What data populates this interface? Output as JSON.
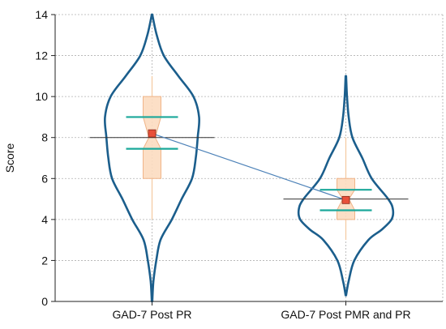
{
  "chart_data": {
    "type": "violin",
    "title": "",
    "ylabel": "Score",
    "xlabel": "",
    "ylim": [
      0,
      14
    ],
    "yticks": [
      0,
      2,
      4,
      6,
      8,
      10,
      12,
      14
    ],
    "ytick_labels": [
      "0",
      "2",
      "4",
      "6",
      "8",
      "10",
      "12",
      "14"
    ],
    "grid": "dotted",
    "categories": [
      "GAD-7 Post PR",
      "GAD-7 Post PMR  and PR"
    ],
    "groups": [
      {
        "category": "GAD-7 Post PR",
        "density_profile": [
          [
            0,
            0.005
          ],
          [
            1,
            0.03
          ],
          [
            2,
            0.09
          ],
          [
            3,
            0.18
          ],
          [
            4,
            0.42
          ],
          [
            5,
            0.63
          ],
          [
            6,
            0.85
          ],
          [
            7,
            0.93
          ],
          [
            8,
            0.97
          ],
          [
            9,
            1.0
          ],
          [
            10,
            0.88
          ],
          [
            11,
            0.56
          ],
          [
            12,
            0.25
          ],
          [
            13,
            0.1
          ],
          [
            14,
            0.005
          ]
        ],
        "box_q1": 6,
        "box_q3": 10,
        "median": 8,
        "whisker_low": 4,
        "whisker_high": 11,
        "mean": 8.2,
        "ci_low": 7.45,
        "ci_high": 9.0
      },
      {
        "category": "GAD-7 Post PMR  and PR",
        "density_profile": [
          [
            0.3,
            0.005
          ],
          [
            1,
            0.06
          ],
          [
            2,
            0.18
          ],
          [
            3,
            0.48
          ],
          [
            3.5,
            0.76
          ],
          [
            4,
            0.97
          ],
          [
            4.5,
            1.0
          ],
          [
            5,
            0.9
          ],
          [
            6,
            0.55
          ],
          [
            7,
            0.35
          ],
          [
            8,
            0.14
          ],
          [
            9,
            0.06
          ],
          [
            10,
            0.025
          ],
          [
            11,
            0.005
          ]
        ],
        "box_q1": 4,
        "box_q3": 6,
        "median": 5,
        "whisker_low": 3,
        "whisker_high": 8,
        "mean": 4.95,
        "ci_low": 4.45,
        "ci_high": 5.45
      }
    ],
    "mean_line": true,
    "colors": {
      "violin": "#1b5e8c",
      "box_fill": "#fcdcc0",
      "box_stroke": "#f0b488",
      "whisker": "#f5c9a0",
      "ci": "#1aa89a",
      "mean_marker": "#e8503a",
      "mean_line": "#4d82b8",
      "grid": "#b0b0b0",
      "axis": "#222222"
    }
  }
}
